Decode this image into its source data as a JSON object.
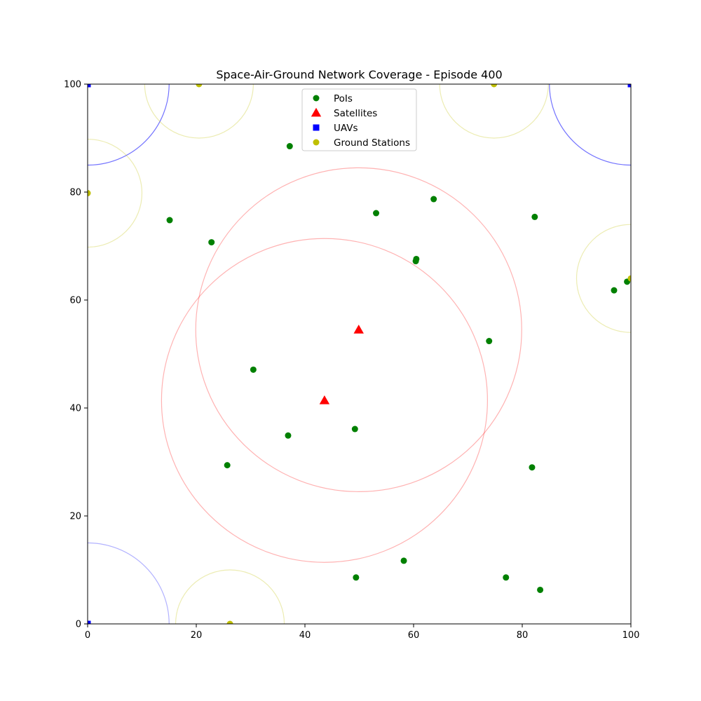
{
  "chart_data": {
    "type": "scatter",
    "title": "Space-Air-Ground Network Coverage - Episode 400",
    "xlabel": "",
    "ylabel": "",
    "xlim": [
      0,
      100
    ],
    "ylim": [
      0,
      100
    ],
    "xticks": [
      "0",
      "20",
      "40",
      "60",
      "80",
      "100"
    ],
    "yticks": [
      "0",
      "20",
      "40",
      "60",
      "80",
      "100"
    ],
    "grid": false,
    "legend_position": "top-center",
    "series": [
      {
        "name": "PoIs",
        "marker": "circle",
        "color": "#008000",
        "points": [
          [
            37.2,
            88.5
          ],
          [
            15.1,
            74.8
          ],
          [
            22.8,
            70.7
          ],
          [
            53.1,
            76.1
          ],
          [
            63.7,
            78.7
          ],
          [
            82.3,
            75.4
          ],
          [
            60.5,
            67.6
          ],
          [
            60.4,
            67.2
          ],
          [
            96.9,
            61.8
          ],
          [
            99.3,
            63.4
          ],
          [
            73.9,
            52.4
          ],
          [
            30.5,
            47.1
          ],
          [
            36.9,
            34.9
          ],
          [
            49.2,
            36.1
          ],
          [
            25.7,
            29.4
          ],
          [
            81.8,
            29.0
          ],
          [
            58.2,
            11.7
          ],
          [
            49.4,
            8.6
          ],
          [
            77.0,
            8.6
          ],
          [
            83.3,
            6.3
          ]
        ]
      },
      {
        "name": "Satellites",
        "marker": "triangle",
        "color": "#ff0000",
        "points": [
          [
            49.9,
            54.5
          ],
          [
            43.6,
            41.4
          ]
        ]
      },
      {
        "name": "UAVs",
        "marker": "square",
        "color": "#0000ff",
        "points": [
          [
            0,
            100
          ],
          [
            100,
            100
          ],
          [
            0,
            0
          ]
        ]
      },
      {
        "name": "Ground Stations",
        "marker": "circle",
        "color": "#bfbf00",
        "points": [
          [
            20.5,
            100
          ],
          [
            74.8,
            100
          ],
          [
            0,
            79.8
          ],
          [
            100,
            64.0
          ],
          [
            26.2,
            0
          ]
        ]
      }
    ],
    "coverage_circles": [
      {
        "type": "satellite",
        "cx": 49.9,
        "cy": 54.5,
        "r": 30,
        "color": "#ff0000",
        "opacity": 0.3
      },
      {
        "type": "satellite",
        "cx": 43.6,
        "cy": 41.4,
        "r": 30,
        "color": "#ff0000",
        "opacity": 0.3
      },
      {
        "type": "uav",
        "cx": 0,
        "cy": 100,
        "r": 15,
        "color": "#0000ff",
        "opacity": 0.55
      },
      {
        "type": "uav",
        "cx": 100,
        "cy": 100,
        "r": 15,
        "color": "#0000ff",
        "opacity": 0.55
      },
      {
        "type": "uav",
        "cx": 0,
        "cy": 0,
        "r": 15,
        "color": "#0000ff",
        "opacity": 0.3
      },
      {
        "type": "ground",
        "cx": 20.5,
        "cy": 100,
        "r": 10,
        "color": "#bfbf00",
        "opacity": 0.3
      },
      {
        "type": "ground",
        "cx": 74.8,
        "cy": 100,
        "r": 10,
        "color": "#bfbf00",
        "opacity": 0.3
      },
      {
        "type": "ground",
        "cx": 0,
        "cy": 79.8,
        "r": 10,
        "color": "#bfbf00",
        "opacity": 0.3
      },
      {
        "type": "ground",
        "cx": 100,
        "cy": 64.0,
        "r": 10,
        "color": "#bfbf00",
        "opacity": 0.3
      },
      {
        "type": "ground",
        "cx": 26.2,
        "cy": 0,
        "r": 10,
        "color": "#bfbf00",
        "opacity": 0.3
      }
    ]
  }
}
